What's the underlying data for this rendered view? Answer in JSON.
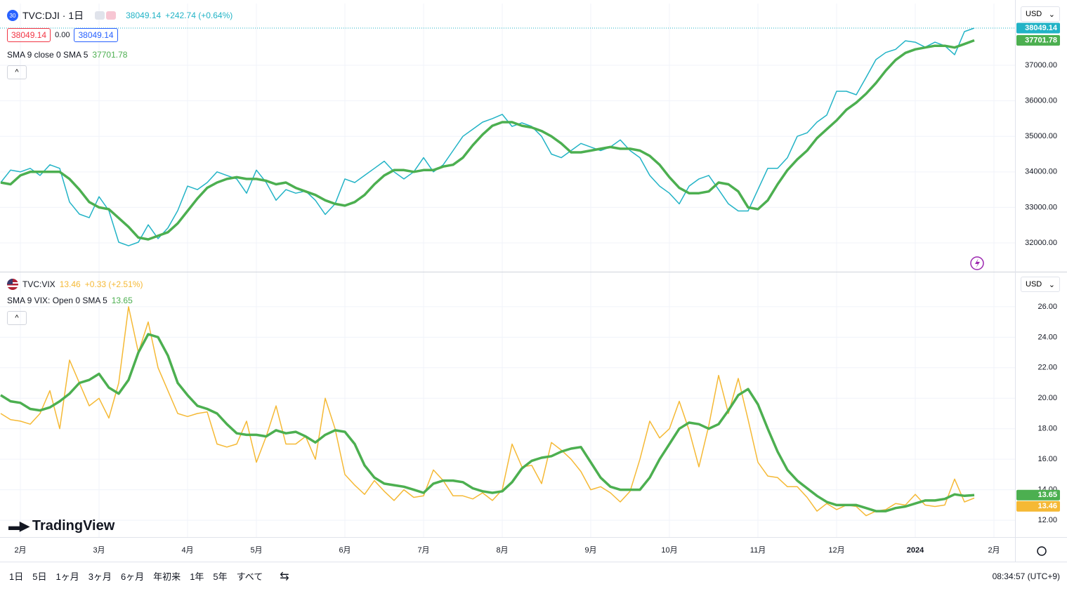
{
  "header": {
    "trade_buttons": [
      "38049.14",
      "0.00",
      "38049.14"
    ]
  },
  "x_axis": {
    "categories": [
      null,
      null,
      "2月",
      null,
      null,
      null,
      null,
      null,
      null,
      null,
      "3月",
      null,
      null,
      null,
      null,
      null,
      null,
      null,
      null,
      "4月",
      null,
      null,
      null,
      null,
      null,
      null,
      "5月",
      null,
      null,
      null,
      null,
      null,
      null,
      null,
      null,
      "6月",
      null,
      null,
      null,
      null,
      null,
      null,
      null,
      "7月",
      null,
      null,
      null,
      null,
      null,
      null,
      null,
      "8月",
      null,
      null,
      null,
      null,
      null,
      null,
      null,
      null,
      "9月",
      null,
      null,
      null,
      null,
      null,
      null,
      null,
      "10月",
      null,
      null,
      null,
      null,
      null,
      null,
      null,
      null,
      "11月",
      null,
      null,
      null,
      null,
      null,
      null,
      null,
      "12月",
      null,
      null,
      null,
      null,
      null,
      null,
      null,
      "2024",
      null,
      null,
      null,
      null,
      null,
      null,
      null,
      "2月"
    ]
  },
  "chart_data": [
    {
      "type": "line",
      "title": "TVC:DJI · 1日",
      "badge": "30",
      "last_change": "+242.74 (+0.64%)",
      "currency": "USD",
      "grid": true,
      "ylim": [
        31190,
        38740
      ],
      "yticks": [
        {
          "value": 32000,
          "label": "32000.00"
        },
        {
          "value": 33000,
          "label": "33000.00"
        },
        {
          "value": 34000,
          "label": "34000.00"
        },
        {
          "value": 35000,
          "label": "35000.00"
        },
        {
          "value": 36000,
          "label": "36000.00"
        },
        {
          "value": 37000,
          "label": "37000.00"
        }
      ],
      "series": [
        {
          "color": "#22b3c6",
          "values": [
            33700,
            34050,
            34000,
            34100,
            33900,
            34200,
            34100,
            33150,
            32810,
            32710,
            33300,
            32910,
            32020,
            31920,
            32020,
            32510,
            32120,
            32420,
            32910,
            33600,
            33500,
            33700,
            34000,
            33900,
            33800,
            33400,
            34050,
            33700,
            33200,
            33500,
            33400,
            33460,
            33200,
            32800,
            33100,
            33800,
            33700,
            33900,
            34100,
            34300,
            34000,
            33800,
            34000,
            34400,
            34000,
            34200,
            34600,
            35000,
            35200,
            35400,
            35500,
            35620,
            35280,
            35380,
            35280,
            35000,
            34500,
            34400,
            34600,
            34800,
            34700,
            34600,
            34700,
            34900,
            34600,
            34400,
            33900,
            33600,
            33400,
            33100,
            33600,
            33800,
            33900,
            33500,
            33100,
            32900,
            32900,
            33500,
            34100,
            34100,
            34400,
            35000,
            35100,
            35400,
            35600,
            36270,
            36270,
            36170,
            36660,
            37160,
            37360,
            37450,
            37690,
            37650,
            37510,
            37650,
            37550,
            37300,
            37950,
            38049.14,
            null,
            null
          ]
        },
        {
          "name": "SMA 9 close 0 SMA 5",
          "color": "#4caf50",
          "values": [
            33700,
            33650,
            33900,
            34000,
            34000,
            34000,
            34000,
            33800,
            33500,
            33150,
            33000,
            32950,
            32700,
            32450,
            32150,
            32100,
            32200,
            32300,
            32550,
            32900,
            33250,
            33550,
            33700,
            33800,
            33850,
            33800,
            33800,
            33750,
            33650,
            33700,
            33550,
            33450,
            33350,
            33200,
            33100,
            33050,
            33150,
            33350,
            33650,
            33900,
            34050,
            34050,
            34000,
            34050,
            34050,
            34150,
            34200,
            34400,
            34750,
            35050,
            35300,
            35400,
            35400,
            35300,
            35250,
            35150,
            35000,
            34800,
            34550,
            34550,
            34600,
            34650,
            34700,
            34650,
            34650,
            34600,
            34450,
            34200,
            33850,
            33550,
            33400,
            33400,
            33450,
            33700,
            33650,
            33450,
            33000,
            32950,
            33200,
            33650,
            34050,
            34350,
            34600,
            34950,
            35200,
            35450,
            35750,
            35950,
            36200,
            36500,
            36850,
            37150,
            37350,
            37450,
            37500,
            37550,
            37550,
            37500,
            37600,
            37701.78,
            null,
            null
          ]
        }
      ]
    },
    {
      "type": "line",
      "last_change": "+0.33 (+2.51%)",
      "currency": "USD",
      "grid": true,
      "ylim": [
        10.9,
        28.25
      ],
      "yticks": [
        {
          "value": 12,
          "label": "12.00"
        },
        {
          "value": 14,
          "label": "14.00"
        },
        {
          "value": 16,
          "label": "16.00"
        },
        {
          "value": 18,
          "label": "18.00"
        },
        {
          "value": 20,
          "label": "20.00"
        },
        {
          "value": 22,
          "label": "22.00"
        },
        {
          "value": 24,
          "label": "24.00"
        },
        {
          "value": 26,
          "label": "26.00"
        }
      ],
      "series": [
        {
          "name": "TVC:VIX",
          "color": "#f5b935",
          "values": [
            19.0,
            18.6,
            18.5,
            18.3,
            19.0,
            20.5,
            18.0,
            22.5,
            21.0,
            19.5,
            20.0,
            18.7,
            21.0,
            26.0,
            23.0,
            25.0,
            22.0,
            20.5,
            19.0,
            18.8,
            19.0,
            19.1,
            17.0,
            16.8,
            17.0,
            18.5,
            15.8,
            17.5,
            19.5,
            17.0,
            17.0,
            17.5,
            16.0,
            20.0,
            18.0,
            15.0,
            14.3,
            13.7,
            14.6,
            13.9,
            13.3,
            14.0,
            13.5,
            13.6,
            15.3,
            14.6,
            13.6,
            13.6,
            13.4,
            13.8,
            13.3,
            14.0,
            17.0,
            15.5,
            15.6,
            14.4,
            17.1,
            16.6,
            16.0,
            15.2,
            14.0,
            14.2,
            13.8,
            13.2,
            13.9,
            16.0,
            18.5,
            17.4,
            18.0,
            19.8,
            17.9,
            15.5,
            18.2,
            21.5,
            19.0,
            21.3,
            18.6,
            15.8,
            14.9,
            14.8,
            14.2,
            14.2,
            13.5,
            12.6,
            13.1,
            12.7,
            13.0,
            12.9,
            12.3,
            12.6,
            12.7,
            13.1,
            13.0,
            13.7,
            13.0,
            12.9,
            13.0,
            14.7,
            13.2,
            13.46,
            null,
            null
          ]
        },
        {
          "name": "SMA 9 VIX: Open 0 SMA 5",
          "color": "#4caf50",
          "values": [
            20.2,
            19.8,
            19.7,
            19.3,
            19.2,
            19.4,
            19.8,
            20.3,
            21.0,
            21.2,
            21.6,
            20.7,
            20.3,
            21.2,
            23.0,
            24.2,
            24.0,
            22.8,
            21.0,
            20.2,
            19.5,
            19.3,
            19.0,
            18.3,
            17.7,
            17.6,
            17.6,
            17.5,
            17.9,
            17.7,
            17.8,
            17.5,
            17.1,
            17.6,
            17.9,
            17.8,
            17.0,
            15.6,
            14.8,
            14.4,
            14.3,
            14.2,
            14.0,
            13.8,
            14.4,
            14.6,
            14.6,
            14.5,
            14.1,
            13.9,
            13.8,
            13.9,
            14.5,
            15.4,
            15.9,
            16.1,
            16.2,
            16.5,
            16.7,
            16.8,
            15.8,
            14.8,
            14.2,
            14.0,
            14.0,
            14.0,
            14.8,
            16.0,
            17.0,
            18.0,
            18.4,
            18.3,
            18.0,
            18.3,
            19.2,
            20.2,
            20.6,
            19.6,
            18.0,
            16.5,
            15.3,
            14.6,
            14.1,
            13.6,
            13.2,
            13.0,
            13.0,
            13.0,
            12.8,
            12.6,
            12.6,
            12.8,
            12.9,
            13.1,
            13.3,
            13.3,
            13.4,
            13.7,
            13.6,
            13.65,
            null,
            null
          ]
        }
      ]
    }
  ],
  "logo": "TradingView",
  "toolbar": {
    "ranges": [
      "1日",
      "5日",
      "1ヶ月",
      "3ヶ月",
      "6ヶ月",
      "年初来",
      "1年",
      "5年",
      "すべて"
    ],
    "clock": "08:34:57 (UTC+9)"
  }
}
